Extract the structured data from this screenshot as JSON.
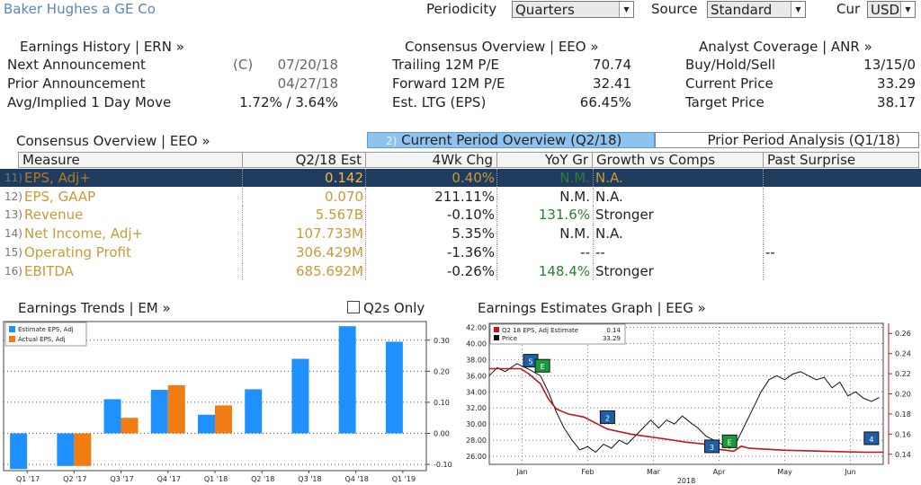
{
  "header": {
    "company": "Baker Hughes a GE Co",
    "periodicity_label": "Periodicity",
    "periodicity_value": "Quarters",
    "source_label": "Source",
    "source_value": "Standard",
    "cur_label": "Cur",
    "cur_value": "USD"
  },
  "earnings_history": {
    "title": "Earnings History | ERN »",
    "rows": [
      {
        "label": "Next Announcement",
        "prefix": "(C)",
        "value": "07/20/18"
      },
      {
        "label": "Prior Announcement",
        "prefix": "",
        "value": "04/27/18"
      },
      {
        "label": "Avg/Implied 1 Day Move",
        "prefix": "",
        "value": "1.72% / 3.64%"
      }
    ]
  },
  "consensus_overview_top": {
    "title": "Consensus Overview | EEO »",
    "rows": [
      {
        "label": "Trailing 12M P/E",
        "value": "70.74"
      },
      {
        "label": "Forward 12M P/E",
        "value": "32.41"
      },
      {
        "label": "Est. LTG (EPS)",
        "value": "66.45%"
      }
    ]
  },
  "analyst_coverage": {
    "title": "Analyst Coverage | ANR »",
    "rows": [
      {
        "label": "Buy/Hold/Sell",
        "value": "13/15/0"
      },
      {
        "label": "Current Price",
        "value": "33.29"
      },
      {
        "label": "Target Price",
        "value": "38.17"
      }
    ]
  },
  "consensus_table": {
    "title": "Consensus Overview | EEO »",
    "tab_active_num": "2)",
    "tab_active": "Current Period Overview (Q2/18)",
    "tab_inactive": "Prior Period Analysis (Q1/18)",
    "headers": [
      "Measure",
      "Q2/18 Est",
      "4Wk Chg",
      "YoY Gr",
      "Growth vs Comps",
      "Past Surprise"
    ],
    "rows": [
      {
        "num": "11)",
        "measure": "EPS, Adj+",
        "est": "0.142",
        "chg": "0.40%",
        "yoy": "N.M.",
        "comps": "N.A.",
        "surprise": ""
      },
      {
        "num": "12)",
        "measure": "EPS, GAAP",
        "est": "0.070",
        "chg": "211.11%",
        "yoy": "N.M.",
        "comps": "N.A.",
        "surprise": ""
      },
      {
        "num": "13)",
        "measure": "Revenue",
        "est": "5.567B",
        "chg": "-0.10%",
        "yoy": "131.6%",
        "comps": "Stronger",
        "surprise": ""
      },
      {
        "num": "14)",
        "measure": "Net Income, Adj+",
        "est": "107.733M",
        "chg": "5.35%",
        "yoy": "N.M.",
        "comps": "N.A.",
        "surprise": ""
      },
      {
        "num": "15)",
        "measure": "Operating Profit",
        "est": "306.429M",
        "chg": "-1.36%",
        "yoy": "--",
        "comps": "--",
        "surprise": "--"
      },
      {
        "num": "16)",
        "measure": "EBITDA",
        "est": "685.692M",
        "chg": "-0.26%",
        "yoy": "148.4%",
        "comps": "Stronger",
        "surprise": ""
      }
    ]
  },
  "trends_panel": {
    "title": "Earnings Trends | EM »",
    "q2s_only": "Q2s Only"
  },
  "graph_panel": {
    "title": "Earnings Estimates Graph | EEG »"
  },
  "chart_data": [
    {
      "type": "bar",
      "categories": [
        "Q1 '17",
        "Q2 '17",
        "Q3 '17",
        "Q4 '17",
        "Q1 '18",
        "Q2 '18",
        "Q3 '18",
        "Q4 '18",
        "Q1 '19"
      ],
      "series": [
        {
          "name": "Estimate EPS, Adj",
          "color": "#1e90ff",
          "values": [
            -0.115,
            -0.105,
            0.11,
            0.14,
            0.06,
            0.142,
            0.24,
            0.345,
            0.295
          ]
        },
        {
          "name": "Actual EPS, Adj",
          "color": "#f07c12",
          "values": [
            null,
            -0.105,
            0.05,
            0.155,
            0.09,
            null,
            null,
            null,
            null
          ]
        }
      ],
      "ylim": [
        -0.12,
        0.36
      ],
      "yticks": [
        "-0.10",
        "0.00",
        "0.10",
        "0.20",
        "0.30"
      ],
      "legend": "top-left"
    },
    {
      "type": "line",
      "legend": "top-left",
      "legend_entries": [
        {
          "name": "Q2 18 EPS, Adj Estimate",
          "value": "0.14",
          "color": "#c0141c"
        },
        {
          "name": "Price",
          "value": "33.29",
          "color": "#111111"
        }
      ],
      "x_ticks": [
        "Jan",
        "Feb",
        "Mar",
        "Apr",
        "May",
        "Jun"
      ],
      "x_year_label": "2018",
      "left_axis": {
        "ylim": [
          25,
          42.5
        ],
        "ticks": [
          "26.00",
          "28.00",
          "30.00",
          "32.00",
          "34.00",
          "36.00",
          "38.00",
          "40.00",
          "42.00"
        ]
      },
      "right_axis": {
        "ylim": [
          0.13,
          0.27
        ],
        "ticks": [
          "0.14",
          "0.16",
          "0.18",
          "0.20",
          "0.22",
          "0.24",
          "0.26"
        ]
      },
      "series": [
        {
          "name": "Price",
          "axis": "left",
          "points": [
            [
              0.0,
              36.0
            ],
            [
              0.02,
              37.0
            ],
            [
              0.04,
              36.5
            ],
            [
              0.07,
              37.5
            ],
            [
              0.1,
              36.8
            ],
            [
              0.13,
              36.0
            ],
            [
              0.15,
              34.0
            ],
            [
              0.17,
              31.5
            ],
            [
              0.19,
              29.5
            ],
            [
              0.21,
              28.0
            ],
            [
              0.23,
              26.8
            ],
            [
              0.25,
              27.2
            ],
            [
              0.27,
              26.5
            ],
            [
              0.29,
              27.5
            ],
            [
              0.31,
              27.0
            ],
            [
              0.33,
              28.0
            ],
            [
              0.35,
              27.5
            ],
            [
              0.37,
              28.5
            ],
            [
              0.39,
              29.5
            ],
            [
              0.41,
              30.5
            ],
            [
              0.43,
              29.5
            ],
            [
              0.45,
              30.5
            ],
            [
              0.47,
              30.0
            ],
            [
              0.49,
              31.0
            ],
            [
              0.51,
              30.2
            ],
            [
              0.53,
              29.5
            ],
            [
              0.55,
              28.5
            ],
            [
              0.57,
              28.0
            ],
            [
              0.59,
              27.5
            ],
            [
              0.61,
              27.0
            ],
            [
              0.63,
              28.0
            ],
            [
              0.65,
              30.0
            ],
            [
              0.67,
              32.0
            ],
            [
              0.69,
              34.0
            ],
            [
              0.71,
              35.5
            ],
            [
              0.73,
              36.0
            ],
            [
              0.75,
              35.5
            ],
            [
              0.77,
              36.2
            ],
            [
              0.79,
              36.5
            ],
            [
              0.81,
              36.0
            ],
            [
              0.83,
              35.5
            ],
            [
              0.85,
              35.8
            ],
            [
              0.87,
              34.5
            ],
            [
              0.89,
              35.2
            ],
            [
              0.91,
              33.5
            ],
            [
              0.93,
              34.0
            ],
            [
              0.95,
              33.2
            ],
            [
              0.97,
              32.8
            ],
            [
              0.99,
              33.29
            ]
          ]
        },
        {
          "name": "Q2 18 EPS, Adj Estimate",
          "axis": "right",
          "points": [
            [
              0.0,
              0.225
            ],
            [
              0.08,
              0.225
            ],
            [
              0.1,
              0.22
            ],
            [
              0.13,
              0.21
            ],
            [
              0.15,
              0.195
            ],
            [
              0.17,
              0.185
            ],
            [
              0.2,
              0.18
            ],
            [
              0.24,
              0.177
            ],
            [
              0.3,
              0.165
            ],
            [
              0.36,
              0.16
            ],
            [
              0.45,
              0.155
            ],
            [
              0.5,
              0.152
            ],
            [
              0.55,
              0.15
            ],
            [
              0.58,
              0.145
            ],
            [
              0.62,
              0.143
            ],
            [
              0.64,
              0.148
            ],
            [
              0.66,
              0.146
            ],
            [
              0.75,
              0.144
            ],
            [
              0.85,
              0.143
            ],
            [
              0.95,
              0.142
            ],
            [
              1.0,
              0.142
            ]
          ]
        }
      ],
      "markers": [
        {
          "label": "5",
          "color": "#1f5fa8",
          "x": 0.105,
          "y": 0.232
        },
        {
          "label": "E",
          "color": "#1a9a3a",
          "x": 0.135,
          "y": 0.227
        },
        {
          "label": "2",
          "color": "#1f5fa8",
          "x": 0.3,
          "y": 0.176
        },
        {
          "label": "3",
          "color": "#1f5fa8",
          "x": 0.565,
          "y": 0.147
        },
        {
          "label": "E",
          "color": "#1a9a3a",
          "x": 0.61,
          "y": 0.152
        },
        {
          "label": "4",
          "color": "#1f5fa8",
          "x": 0.97,
          "y": 0.155
        }
      ]
    }
  ]
}
